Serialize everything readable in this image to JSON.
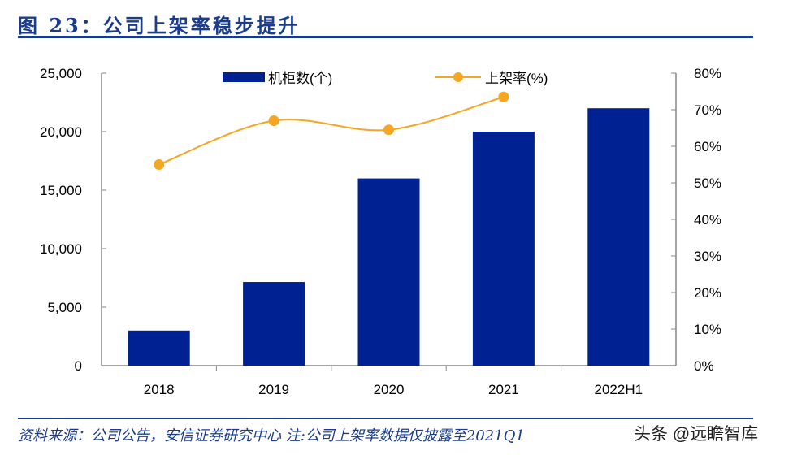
{
  "header": {
    "title": "图 23：公司上架率稳步提升"
  },
  "footer": {
    "source": "资料来源：公司公告，安信证券研究中心 注:公司上架率数据仅披露至2021Q1",
    "watermark": "头条 @远瞻智库"
  },
  "chart_data": {
    "type": "bar+line",
    "title": "公司上架率稳步提升",
    "categories": [
      "2018",
      "2019",
      "2020",
      "2021",
      "2022H1"
    ],
    "series": [
      {
        "name": "机柜数(个)",
        "type": "bar",
        "axis": "left",
        "color": "#002191",
        "values": [
          3000,
          7150,
          16000,
          20000,
          22000
        ]
      },
      {
        "name": "上架率(%)",
        "type": "line",
        "axis": "right",
        "color": "#f5a623",
        "values": [
          55,
          67,
          64.5,
          73.5,
          null
        ]
      }
    ],
    "y_left": {
      "range": [
        0,
        25000
      ],
      "ticks": [
        0,
        5000,
        10000,
        15000,
        20000,
        25000
      ],
      "tick_labels": [
        "0",
        "5,000",
        "10,000",
        "15,000",
        "20,000",
        "25,000"
      ]
    },
    "y_right": {
      "range": [
        0,
        80
      ],
      "ticks": [
        0,
        10,
        20,
        30,
        40,
        50,
        60,
        70,
        80
      ],
      "tick_labels": [
        "0%",
        "10%",
        "20%",
        "30%",
        "40%",
        "50%",
        "60%",
        "70%",
        "80%"
      ]
    },
    "legend": "top",
    "grid": false
  }
}
